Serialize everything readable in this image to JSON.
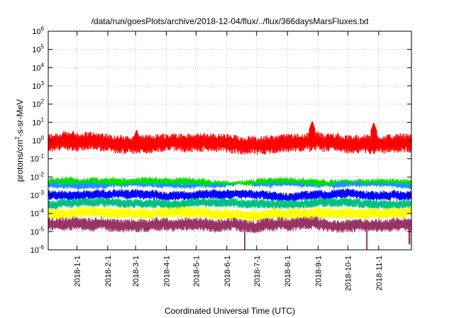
{
  "chart_data": {
    "type": "line",
    "title": "/data/run/goesPlots/archive/2018-12-04/flux/../flux/366daysMarsFluxes.txt",
    "xlabel": "Coordinated Universal Time (UTC)",
    "ylabel": {
      "prefix": "protons/cm",
      "superscript": "2",
      "suffix": "-s-sr-MeV"
    },
    "y_scale": "log",
    "ylim": [
      1e-06,
      1000000.0
    ],
    "y_ticks": [
      {
        "value": 1e-06,
        "base": "10",
        "exp": "-6"
      },
      {
        "value": 1e-05,
        "base": "10",
        "exp": "-5"
      },
      {
        "value": 0.0001,
        "base": "10",
        "exp": "-4"
      },
      {
        "value": 0.001,
        "base": "10",
        "exp": "-3"
      },
      {
        "value": 0.01,
        "base": "10",
        "exp": "-2"
      },
      {
        "value": 0.1,
        "base": "10",
        "exp": "-1"
      },
      {
        "value": 1,
        "base": "10",
        "exp": "0"
      },
      {
        "value": 10.0,
        "base": "10",
        "exp": "1"
      },
      {
        "value": 100.0,
        "base": "10",
        "exp": "2"
      },
      {
        "value": 1000.0,
        "base": "10",
        "exp": "3"
      },
      {
        "value": 10000.0,
        "base": "10",
        "exp": "4"
      },
      {
        "value": 100000.0,
        "base": "10",
        "exp": "5"
      },
      {
        "value": 1000000.0,
        "base": "10",
        "exp": "6"
      }
    ],
    "xlim": [
      "2017-12-03",
      "2018-12-04"
    ],
    "x_ticks": [
      "2018-1-1",
      "2018-2-1",
      "2018-3-1",
      "2018-4-1",
      "2018-5-1",
      "2018-6-1",
      "2018-7-1",
      "2018-8-1",
      "2018-9-1",
      "2018-10-1",
      "2018-11-1"
    ],
    "grid": true,
    "legend": "none",
    "series": [
      {
        "color": "#ff0000",
        "level": 0.7,
        "spread": 0.18,
        "noise": 0.2,
        "spikes": [
          [
            "2018-08-26",
            12
          ],
          [
            "2018-10-27",
            10
          ],
          [
            "2017-12-28",
            3.5
          ],
          [
            "2018-03-02",
            4
          ]
        ]
      },
      {
        "color": "#00e000",
        "level": 0.0045,
        "spread": 0.08,
        "noise": 0.1,
        "spikes": []
      },
      {
        "color": "#1e90ff",
        "level": 0.003,
        "spread": 0.06,
        "noise": 0.08,
        "spikes": []
      },
      {
        "color": "#ffffff",
        "level": 0.002,
        "spread": 0.1,
        "noise": 0.09,
        "spikes": []
      },
      {
        "color": "#0000ff",
        "level": 0.0011,
        "spread": 0.1,
        "noise": 0.1,
        "spikes": []
      },
      {
        "color": "#00c080",
        "level": 0.00035,
        "spread": 0.08,
        "noise": 0.1,
        "spikes": []
      },
      {
        "color": "#ffff00",
        "level": 0.0001,
        "spread": 0.08,
        "noise": 0.12,
        "spikes": []
      },
      {
        "color": "#993366",
        "level": 2.5e-05,
        "spread": 0.08,
        "noise": 0.14,
        "spikes": [],
        "dips": [
          [
            "2018-06-19",
            1e-06
          ],
          [
            "2018-10-20",
            1e-06
          ],
          [
            "2018-12-02",
            2e-06
          ]
        ]
      }
    ]
  }
}
